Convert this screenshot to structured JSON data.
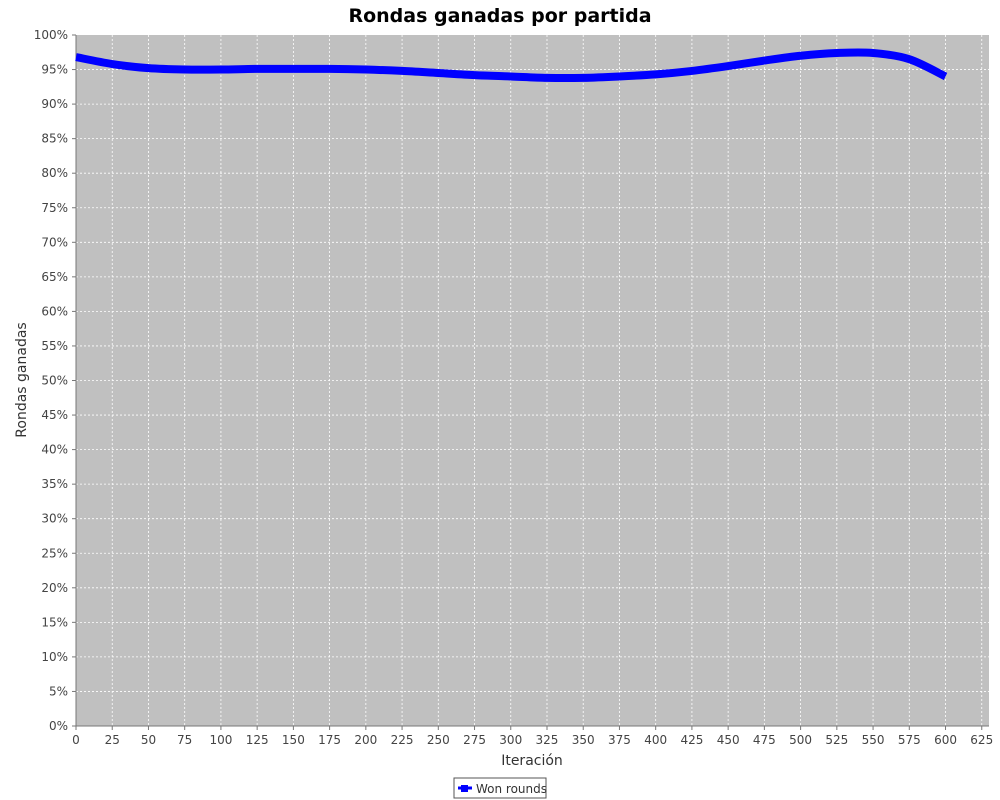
{
  "chart_data": {
    "type": "line",
    "title": "Rondas ganadas por partida",
    "xlabel": "Iteración",
    "ylabel": "Rondas ganadas",
    "xlim": [
      0,
      630
    ],
    "ylim": [
      0,
      100
    ],
    "x_ticks": [
      0,
      25,
      50,
      75,
      100,
      125,
      150,
      175,
      200,
      225,
      250,
      275,
      300,
      325,
      350,
      375,
      400,
      425,
      450,
      475,
      500,
      525,
      550,
      575,
      600,
      625
    ],
    "y_ticks": [
      "0%",
      "5%",
      "10%",
      "15%",
      "20%",
      "25%",
      "30%",
      "35%",
      "40%",
      "45%",
      "50%",
      "55%",
      "60%",
      "65%",
      "70%",
      "75%",
      "80%",
      "85%",
      "90%",
      "95%",
      "100%"
    ],
    "grid": true,
    "legend_position": "bottom-center",
    "background_color": "#c0c0c0",
    "series": [
      {
        "name": "Won rounds",
        "color": "#0000ff",
        "x": [
          0,
          25,
          50,
          75,
          100,
          125,
          150,
          175,
          200,
          225,
          250,
          275,
          300,
          325,
          350,
          375,
          400,
          425,
          450,
          475,
          500,
          525,
          550,
          575,
          600
        ],
        "y": [
          96.8,
          95.8,
          95.2,
          95.0,
          95.0,
          95.1,
          95.1,
          95.1,
          95.0,
          94.8,
          94.5,
          94.2,
          94.0,
          93.8,
          93.8,
          94.0,
          94.3,
          94.8,
          95.5,
          96.3,
          97.0,
          97.4,
          97.4,
          96.5,
          94.0
        ]
      }
    ]
  }
}
